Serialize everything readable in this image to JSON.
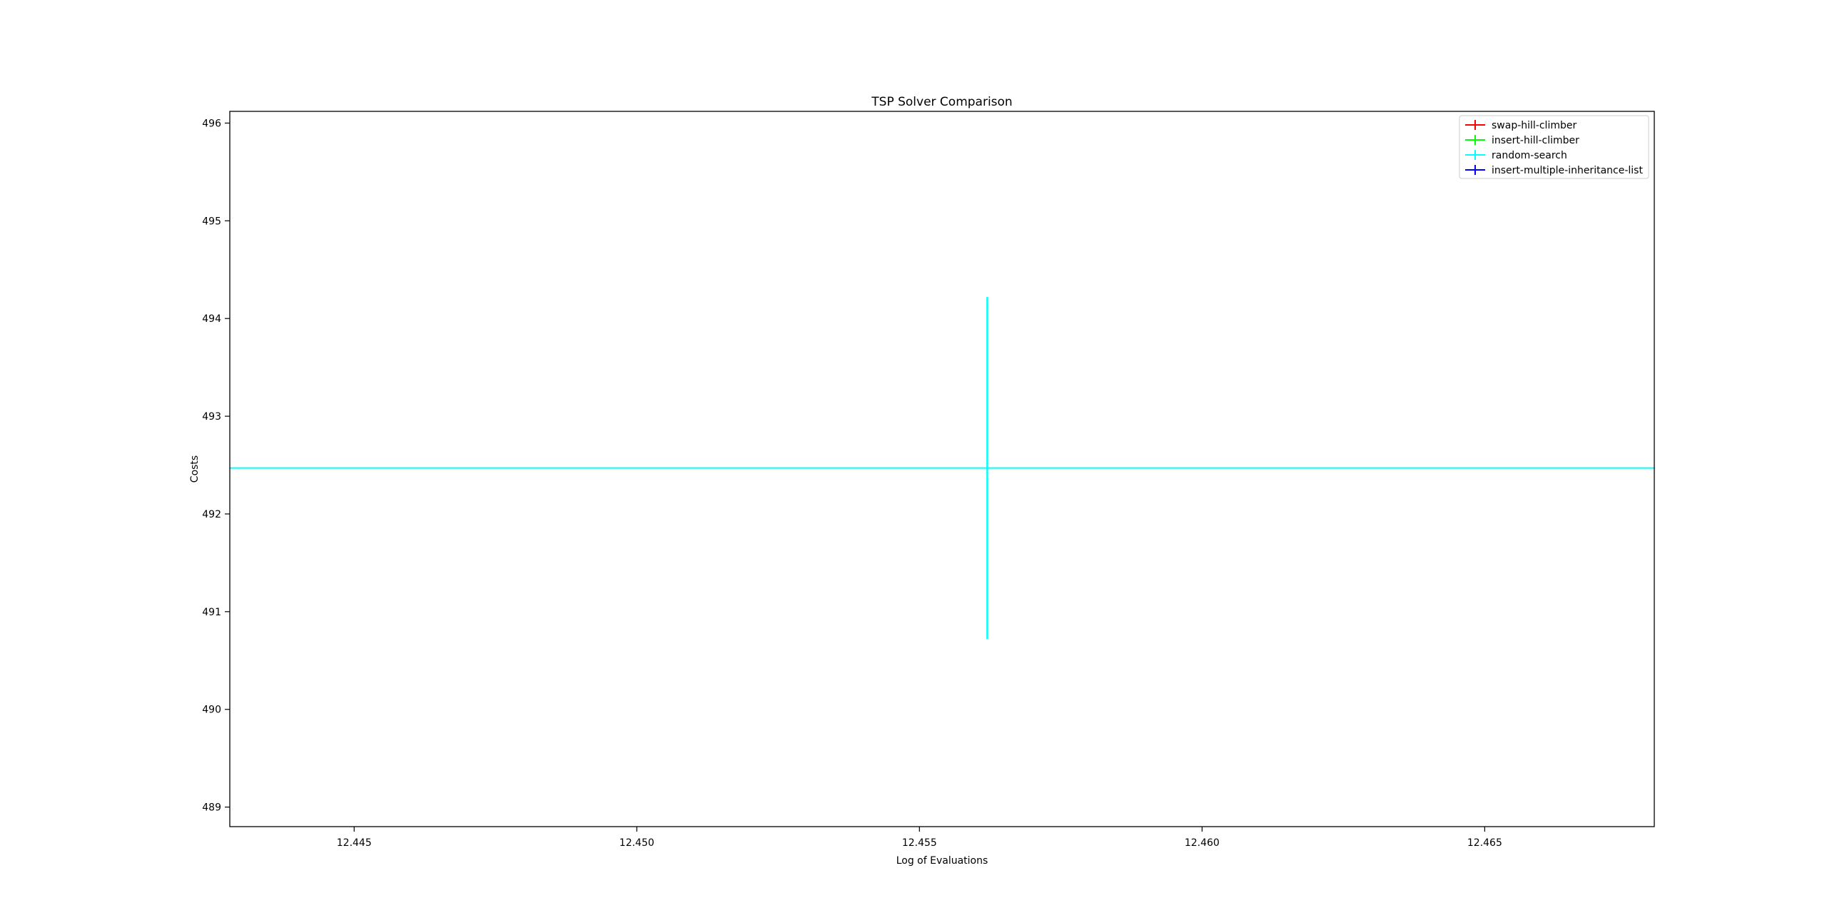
{
  "chart_data": {
    "type": "line",
    "title": "TSP Solver Comparison",
    "xlabel": "Log of Evaluations",
    "ylabel": "Costs",
    "xlim": [
      12.4428,
      12.468
    ],
    "ylim": [
      488.8,
      496.12
    ],
    "xticks": [
      12.445,
      12.45,
      12.455,
      12.46,
      12.465
    ],
    "xtick_labels": [
      "12.445",
      "12.450",
      "12.455",
      "12.460",
      "12.465"
    ],
    "yticks": [
      489,
      490,
      491,
      492,
      493,
      494,
      495,
      496
    ],
    "ytick_labels": [
      "489",
      "490",
      "491",
      "492",
      "493",
      "494",
      "495",
      "496"
    ],
    "grid": false,
    "legend_position": "top-right",
    "series": [
      {
        "name": "swap-hill-climber",
        "color": "#ff0000",
        "points": []
      },
      {
        "name": "insert-hill-climber",
        "color": "#00ff00",
        "points": []
      },
      {
        "name": "random-search",
        "color": "#00ffff",
        "points": [
          {
            "x": 12.4562,
            "y": 492.47,
            "yerr_low": 490.72,
            "yerr_high": 494.22
          }
        ],
        "hline": 492.47
      },
      {
        "name": "insert-multiple-inheritance-list",
        "color": "#0000ff",
        "points": []
      }
    ]
  }
}
